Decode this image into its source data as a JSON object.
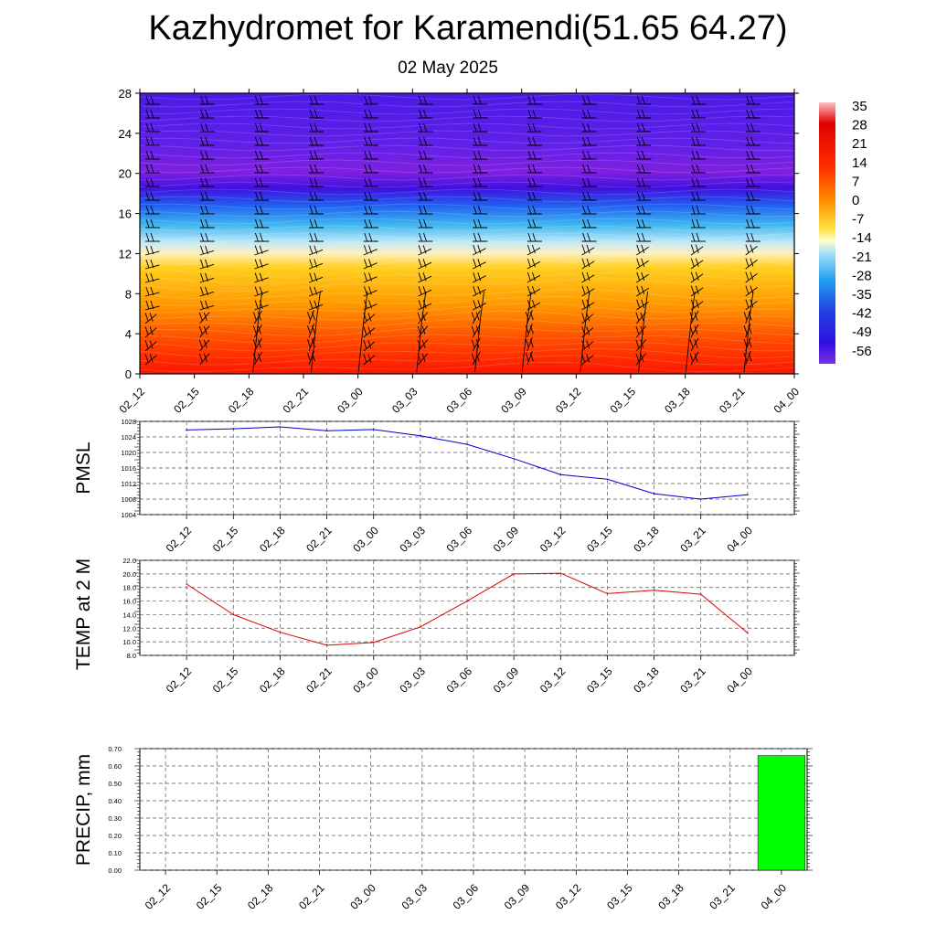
{
  "title": "Kazhydromet for Karamendi(51.65 64.27)",
  "subtitle": "02 May 2025",
  "time_labels": [
    "02_12",
    "02_15",
    "02_18",
    "02_21",
    "03_00",
    "03_03",
    "03_06",
    "03_09",
    "03_12",
    "03_15",
    "03_18",
    "03_21",
    "04_00"
  ],
  "chart_data": [
    {
      "type": "heatmap",
      "title": "",
      "y_ticks": [
        0,
        4,
        8,
        12,
        16,
        20,
        24,
        28
      ],
      "ylim": [
        0,
        28
      ],
      "x": [
        "02_12",
        "02_15",
        "02_18",
        "02_21",
        "03_00",
        "03_03",
        "03_06",
        "03_09",
        "03_12",
        "03_15",
        "03_18",
        "03_21",
        "04_00"
      ],
      "description_of_field": "temperature with height; warm near surface, cold aloft, wind barbs overlaid",
      "colorbar": {
        "labels": [
          "35",
          "28",
          "21",
          "14",
          "7",
          "0",
          "-7",
          "-14",
          "-21",
          "-28",
          "-35",
          "-42",
          "-49",
          "-56"
        ],
        "range": [
          -60,
          38
        ]
      },
      "colors": {
        "warm": "#ff2a00",
        "mid": "#ffd040",
        "cold": "#40b0f0",
        "coldest": "#4010e0",
        "violet": "#8020e0"
      }
    },
    {
      "type": "line",
      "ylabel": "PMSL",
      "x": [
        "02_12",
        "02_15",
        "02_18",
        "02_21",
        "03_00",
        "03_03",
        "03_06",
        "03_09",
        "03_12",
        "03_15",
        "03_18",
        "03_21",
        "04_00"
      ],
      "y_ticks": [
        "1028",
        "1024",
        "1020",
        "1016",
        "1012",
        "1008",
        "1004"
      ],
      "ylim": [
        1004,
        1028
      ],
      "series": [
        {
          "values": [
            1025.8,
            1026.1,
            1026.6,
            1025.6,
            1025.9,
            1024.3,
            1022.1,
            1018.4,
            1014.3,
            1013.1,
            1009.4,
            1008.0,
            1009.1
          ],
          "color": "#0000cc"
        }
      ]
    },
    {
      "type": "line",
      "ylabel": "TEMP at 2 M",
      "x": [
        "02_12",
        "02_15",
        "02_18",
        "02_21",
        "03_00",
        "03_03",
        "03_06",
        "03_09",
        "03_12",
        "03_15",
        "03_18",
        "03_21",
        "04_00"
      ],
      "y_ticks": [
        "22.0",
        "20.0",
        "18.0",
        "16.0",
        "14.0",
        "12.0",
        "10.0",
        "8.0"
      ],
      "ylim": [
        8.0,
        22.0
      ],
      "series": [
        {
          "values": [
            18.5,
            14.0,
            11.4,
            9.5,
            9.9,
            12.2,
            16.0,
            20.0,
            20.1,
            17.1,
            17.6,
            17.0,
            11.3
          ],
          "color": "#dd0000"
        }
      ]
    },
    {
      "type": "bar",
      "ylabel": "PRECIP, mm",
      "categories": [
        "02_12",
        "02_15",
        "02_18",
        "02_21",
        "03_00",
        "03_03",
        "03_06",
        "03_09",
        "03_12",
        "03_15",
        "03_18",
        "03_21",
        "04_00"
      ],
      "y_ticks": [
        "0.70",
        "0.60",
        "0.50",
        "0.40",
        "0.30",
        "0.20",
        "0.10",
        "0.00"
      ],
      "ylim": [
        0.0,
        0.7
      ],
      "series": [
        {
          "values": [
            0,
            0,
            0,
            0,
            0,
            0,
            0,
            0,
            0,
            0,
            0,
            0,
            0.66
          ],
          "color": "#00ff00"
        }
      ]
    }
  ]
}
